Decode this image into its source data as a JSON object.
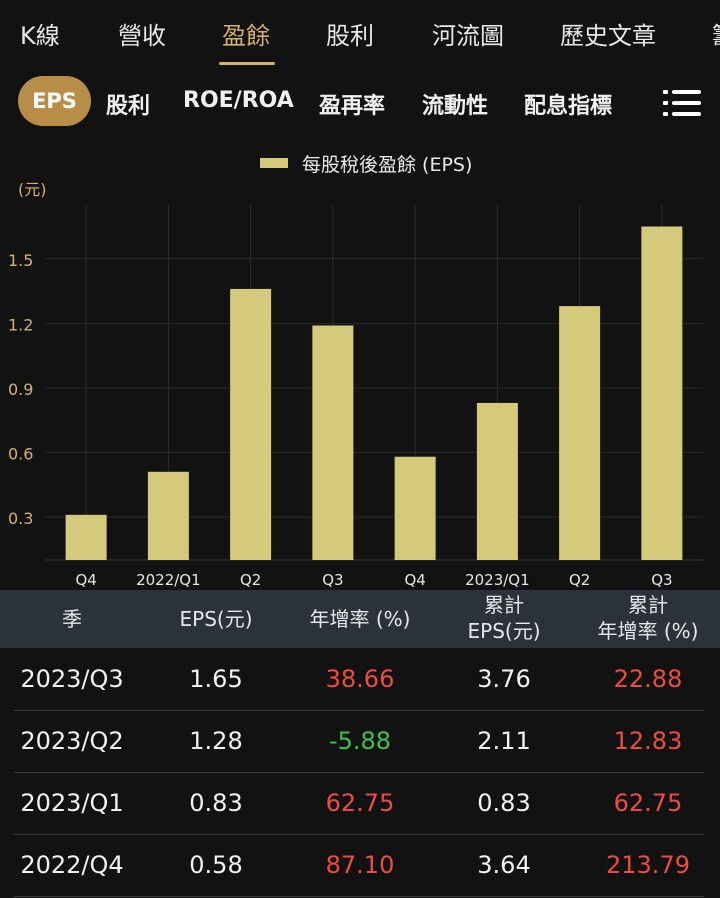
{
  "top_tabs": [
    {
      "label": "K線",
      "active": false
    },
    {
      "label": "營收",
      "active": false
    },
    {
      "label": "盈餘",
      "active": true
    },
    {
      "label": "股利",
      "active": false
    },
    {
      "label": "河流圖",
      "active": false
    },
    {
      "label": "歷史文章",
      "active": false
    },
    {
      "label": "籌",
      "active": false
    }
  ],
  "sub_tabs": {
    "active": "EPS",
    "items": [
      "股利",
      "ROE/ROA",
      "盈再率",
      "流動性",
      "配息指標"
    ],
    "menu_icon": "list-icon"
  },
  "colors": {
    "accent": "#d6b16d",
    "pill": "#b88d47",
    "bar": "#d5c97c",
    "positive": "#ee4c3e",
    "negative": "#3fc24a",
    "header_bg": "#2c323b"
  },
  "chart_data": {
    "type": "bar",
    "title": "",
    "legend": [
      "每股稅後盈餘 (EPS)"
    ],
    "unit_label": "(元)",
    "categories": [
      "Q4",
      "2022/Q1",
      "Q2",
      "Q3",
      "Q4",
      "2023/Q1",
      "Q2",
      "Q3"
    ],
    "series": [
      {
        "name": "每股稅後盈餘 (EPS)",
        "values": [
          0.31,
          0.51,
          1.36,
          1.19,
          0.58,
          0.83,
          1.28,
          1.65
        ]
      }
    ],
    "yticks": [
      0.3,
      0.6,
      0.9,
      1.2,
      1.5
    ],
    "ylim": [
      0.1,
      1.75
    ],
    "grid": true
  },
  "table": {
    "headers": [
      {
        "line1": "季",
        "line2": ""
      },
      {
        "line1": "EPS(元)",
        "line2": ""
      },
      {
        "line1": "年增率 (%)",
        "line2": ""
      },
      {
        "line1": "累計",
        "line2": "EPS(元)"
      },
      {
        "line1": "累計",
        "line2": "年增率 (%)"
      }
    ],
    "rows": [
      {
        "season": "2023/Q3",
        "eps": "1.65",
        "yoy": "38.66",
        "cum_eps": "3.76",
        "cum_yoy": "22.88"
      },
      {
        "season": "2023/Q2",
        "eps": "1.28",
        "yoy": "-5.88",
        "cum_eps": "2.11",
        "cum_yoy": "12.83"
      },
      {
        "season": "2023/Q1",
        "eps": "0.83",
        "yoy": "62.75",
        "cum_eps": "0.83",
        "cum_yoy": "62.75"
      },
      {
        "season": "2022/Q4",
        "eps": "0.58",
        "yoy": "87.10",
        "cum_eps": "3.64",
        "cum_yoy": "213.79"
      }
    ]
  }
}
